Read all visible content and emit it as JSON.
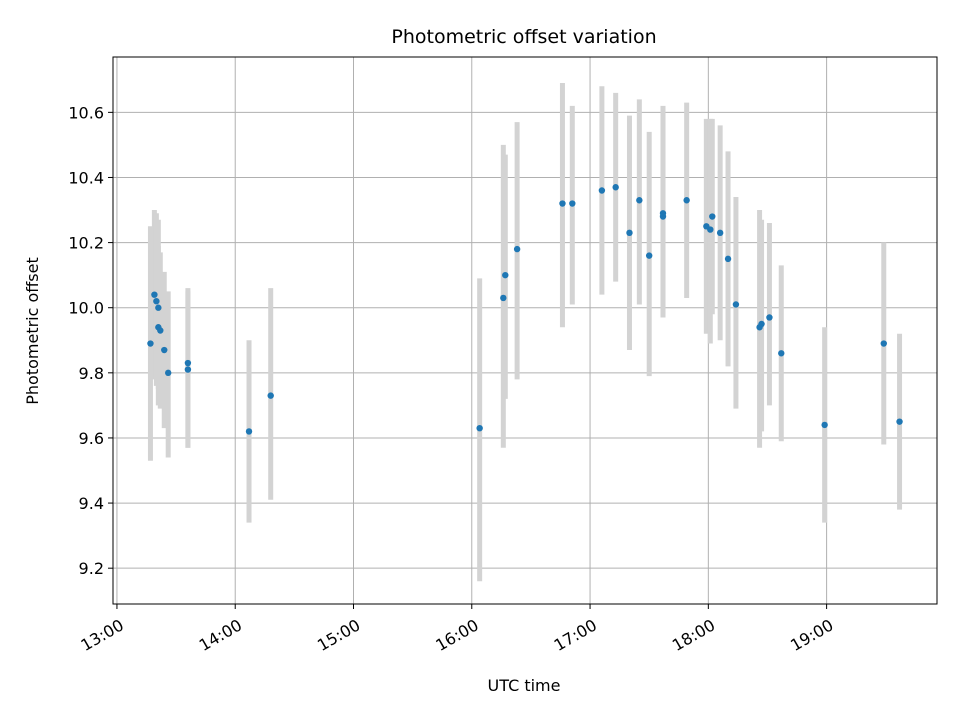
{
  "chart_data": {
    "type": "scatter",
    "title": "Photometric offset variation",
    "xlabel": "UTC time",
    "ylabel": "Photometric offset",
    "x_ticks": [
      "13:00",
      "14:00",
      "15:00",
      "16:00",
      "17:00",
      "18:00",
      "19:00"
    ],
    "y_ticks": [
      "9.2",
      "9.4",
      "9.6",
      "9.8",
      "10.0",
      "10.2",
      "10.4",
      "10.6"
    ],
    "xlim": [
      "12:58",
      "19:56"
    ],
    "ylim": [
      9.09,
      10.77
    ],
    "grid": true,
    "colors": {
      "points": "#1f77b4",
      "errorbars": "#d3d3d3",
      "grid": "#b0b0b0"
    },
    "series": [
      {
        "points": [
          {
            "x": "13:17",
            "y": 9.89,
            "lo": 9.53,
            "hi": 10.25
          },
          {
            "x": "13:19",
            "y": 10.04,
            "lo": 9.78,
            "hi": 10.3
          },
          {
            "x": "13:20",
            "y": 10.02,
            "lo": 9.76,
            "hi": 10.29
          },
          {
            "x": "13:21",
            "y": 10.0,
            "lo": 9.75,
            "hi": 10.27
          },
          {
            "x": "13:21",
            "y": 9.94,
            "lo": 9.7,
            "hi": 10.19
          },
          {
            "x": "13:22",
            "y": 9.93,
            "lo": 9.69,
            "hi": 10.17
          },
          {
            "x": "13:24",
            "y": 9.87,
            "lo": 9.63,
            "hi": 10.11
          },
          {
            "x": "13:26",
            "y": 9.8,
            "lo": 9.54,
            "hi": 10.05
          },
          {
            "x": "13:36",
            "y": 9.83,
            "lo": 9.57,
            "hi": 10.06
          },
          {
            "x": "13:36",
            "y": 9.81,
            "lo": 9.57,
            "hi": 10.05
          },
          {
            "x": "14:07",
            "y": 9.62,
            "lo": 9.34,
            "hi": 9.9
          },
          {
            "x": "14:18",
            "y": 9.73,
            "lo": 9.41,
            "hi": 10.06
          },
          {
            "x": "16:04",
            "y": 9.63,
            "lo": 9.16,
            "hi": 10.09
          },
          {
            "x": "16:16",
            "y": 10.03,
            "lo": 9.57,
            "hi": 10.5
          },
          {
            "x": "16:17",
            "y": 10.1,
            "lo": 9.72,
            "hi": 10.47
          },
          {
            "x": "16:23",
            "y": 10.18,
            "lo": 9.78,
            "hi": 10.57
          },
          {
            "x": "16:46",
            "y": 10.32,
            "lo": 9.94,
            "hi": 10.69
          },
          {
            "x": "16:51",
            "y": 10.32,
            "lo": 10.01,
            "hi": 10.62
          },
          {
            "x": "17:06",
            "y": 10.36,
            "lo": 10.04,
            "hi": 10.68
          },
          {
            "x": "17:13",
            "y": 10.37,
            "lo": 10.08,
            "hi": 10.66
          },
          {
            "x": "17:20",
            "y": 10.23,
            "lo": 9.87,
            "hi": 10.59
          },
          {
            "x": "17:25",
            "y": 10.33,
            "lo": 10.01,
            "hi": 10.64
          },
          {
            "x": "17:30",
            "y": 10.16,
            "lo": 9.79,
            "hi": 10.54
          },
          {
            "x": "17:37",
            "y": 10.29,
            "lo": 9.98,
            "hi": 10.6
          },
          {
            "x": "17:37",
            "y": 10.28,
            "lo": 9.97,
            "hi": 10.62
          },
          {
            "x": "17:49",
            "y": 10.33,
            "lo": 10.03,
            "hi": 10.63
          },
          {
            "x": "17:59",
            "y": 10.25,
            "lo": 9.92,
            "hi": 10.58
          },
          {
            "x": "18:01",
            "y": 10.24,
            "lo": 9.89,
            "hi": 10.58
          },
          {
            "x": "18:02",
            "y": 10.28,
            "lo": 9.98,
            "hi": 10.58
          },
          {
            "x": "18:06",
            "y": 10.23,
            "lo": 9.9,
            "hi": 10.56
          },
          {
            "x": "18:10",
            "y": 10.15,
            "lo": 9.82,
            "hi": 10.48
          },
          {
            "x": "18:14",
            "y": 10.01,
            "lo": 9.69,
            "hi": 10.34
          },
          {
            "x": "18:26",
            "y": 9.94,
            "lo": 9.57,
            "hi": 10.3
          },
          {
            "x": "18:27",
            "y": 9.95,
            "lo": 9.62,
            "hi": 10.27
          },
          {
            "x": "18:31",
            "y": 9.97,
            "lo": 9.7,
            "hi": 10.26
          },
          {
            "x": "18:37",
            "y": 9.86,
            "lo": 9.59,
            "hi": 10.13
          },
          {
            "x": "18:59",
            "y": 9.64,
            "lo": 9.34,
            "hi": 9.94
          },
          {
            "x": "19:29",
            "y": 9.89,
            "lo": 9.58,
            "hi": 10.2
          },
          {
            "x": "19:37",
            "y": 9.65,
            "lo": 9.38,
            "hi": 9.92
          }
        ]
      }
    ]
  }
}
